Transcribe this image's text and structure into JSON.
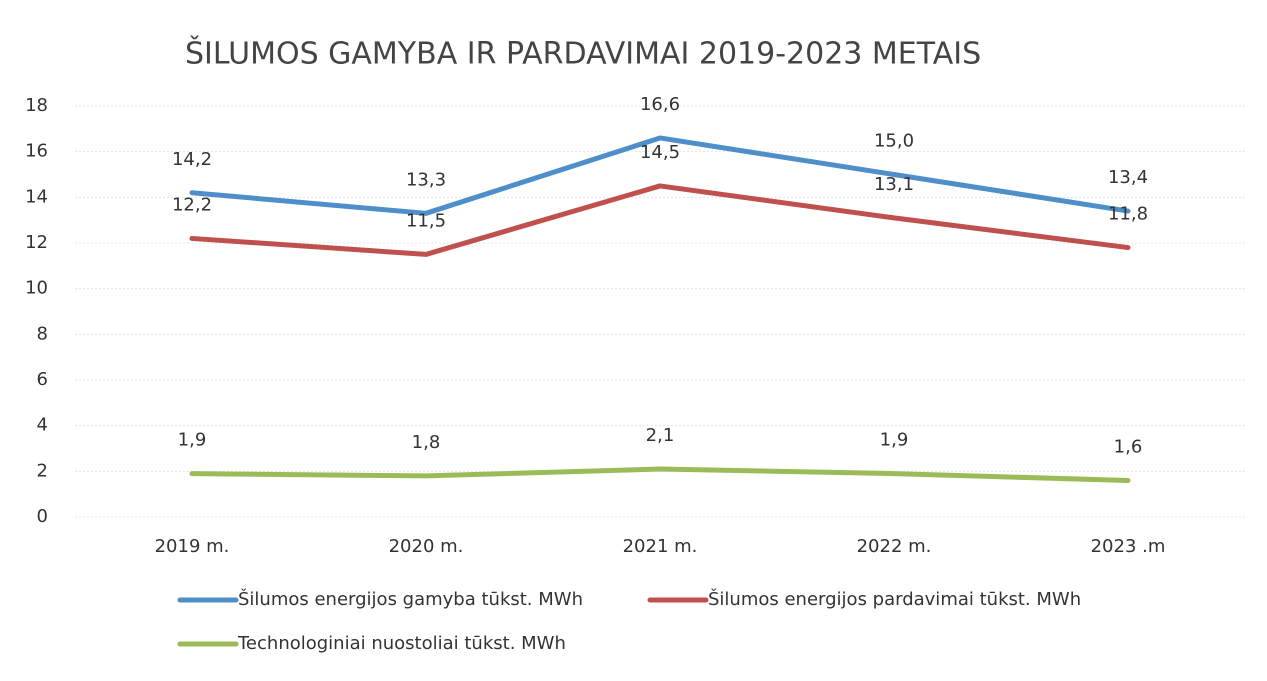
{
  "chart_data": {
    "type": "line",
    "title": "ŠILUMOS GAMYBA IR PARDAVIMAI 2019-2023 METAIS",
    "categories": [
      "2019 m.",
      "2020 m.",
      "2021 m.",
      "2022 m.",
      "2023 .m"
    ],
    "series": [
      {
        "name": "Šilumos energijos gamyba tūkst. MWh",
        "color": "#4f8fc9",
        "values": [
          14.2,
          13.3,
          16.6,
          15.0,
          13.4
        ],
        "value_labels": [
          "14,2",
          "13,3",
          "16,6",
          "15,0",
          "13,4"
        ]
      },
      {
        "name": "Šilumos energijos pardavimai tūkst. MWh",
        "color": "#c0504d",
        "values": [
          12.2,
          11.5,
          14.5,
          13.1,
          11.8
        ],
        "value_labels": [
          "12,2",
          "11,5",
          "14,5",
          "13,1",
          "11,8"
        ]
      },
      {
        "name": "Technologiniai nuostoliai tūkst. MWh",
        "color": "#9bbb59",
        "values": [
          1.9,
          1.8,
          2.1,
          1.9,
          1.6
        ],
        "value_labels": [
          "1,9",
          "1,8",
          "2,1",
          "1,9",
          "1,6"
        ]
      }
    ],
    "ylim": [
      0,
      18
    ],
    "yticks": [
      0,
      2,
      4,
      6,
      8,
      10,
      12,
      14,
      16,
      18
    ],
    "grid": true
  }
}
